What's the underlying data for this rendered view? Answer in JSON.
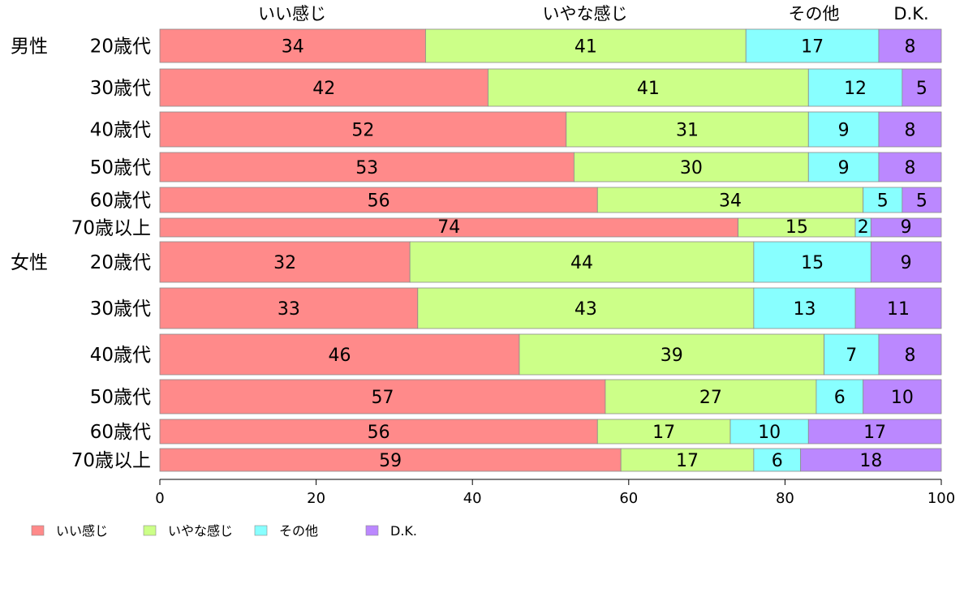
{
  "chart_data": {
    "type": "bar",
    "orientation": "horizontal",
    "stacked": true,
    "xlim": [
      0,
      100
    ],
    "xticks": [
      "0",
      "20",
      "40",
      "60",
      "80",
      "100"
    ],
    "xtick_values": [
      0,
      20,
      40,
      60,
      80,
      100
    ],
    "legend_position": "bottom-left",
    "column_headers": [
      "いい感じ",
      "いやな感じ",
      "その他",
      "D.K."
    ],
    "series": [
      {
        "name": "いい感じ",
        "color": "#FF8A8A",
        "values": [
          34,
          42,
          52,
          53,
          56,
          74,
          32,
          33,
          46,
          57,
          56,
          59
        ]
      },
      {
        "name": "いやな感じ",
        "color": "#CCFF88",
        "values": [
          41,
          41,
          31,
          30,
          34,
          15,
          44,
          43,
          39,
          27,
          17,
          17
        ]
      },
      {
        "name": "その他",
        "color": "#88FFFF",
        "values": [
          17,
          12,
          9,
          9,
          5,
          2,
          15,
          13,
          7,
          6,
          10,
          6
        ]
      },
      {
        "name": "D.K.",
        "color": "#BB88FF",
        "values": [
          8,
          5,
          8,
          8,
          5,
          9,
          9,
          11,
          8,
          10,
          17,
          18
        ]
      }
    ],
    "rows": [
      {
        "group": "男性",
        "label": "20歳代"
      },
      {
        "group": "",
        "label": "30歳代"
      },
      {
        "group": "",
        "label": "40歳代"
      },
      {
        "group": "",
        "label": "50歳代"
      },
      {
        "group": "",
        "label": "60歳代"
      },
      {
        "group": "",
        "label": "70歳以上"
      },
      {
        "group": "女性",
        "label": "20歳代"
      },
      {
        "group": "",
        "label": "30歳代"
      },
      {
        "group": "",
        "label": "40歳代"
      },
      {
        "group": "",
        "label": "50歳代"
      },
      {
        "group": "",
        "label": "60歳代"
      },
      {
        "group": "",
        "label": "70歳以上"
      }
    ]
  }
}
